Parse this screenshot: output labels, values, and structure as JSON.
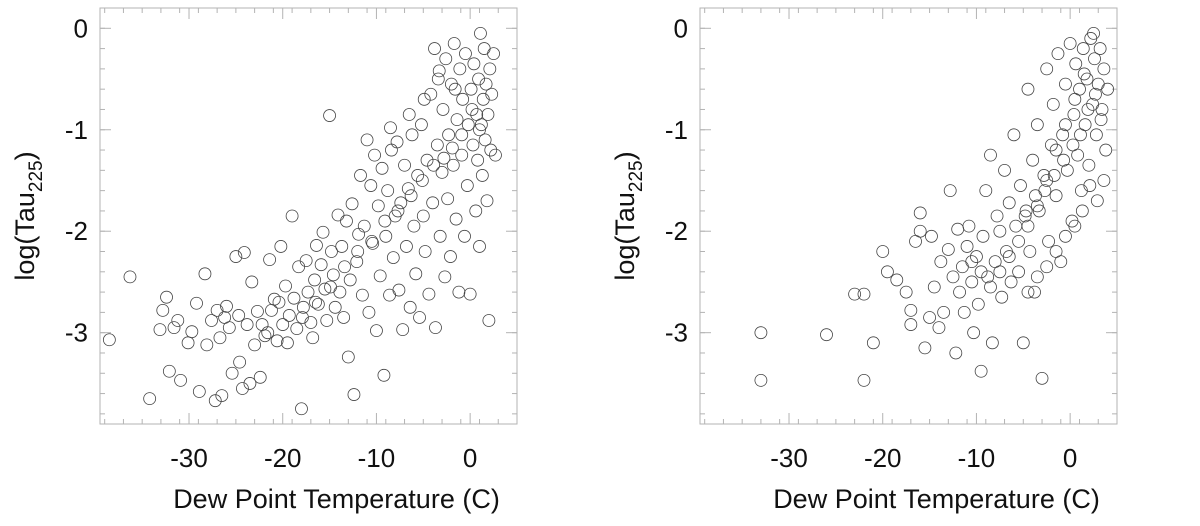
{
  "chart_data": [
    {
      "type": "scatter",
      "title": "",
      "xlabel": "Dew Point Temperature (C)",
      "ylabel_main": "log(Tau",
      "ylabel_sub": "225",
      "ylabel_close": ")",
      "xlim": [
        -39.5,
        5
      ],
      "ylim": [
        -3.9,
        0.2
      ],
      "xticks": [
        -30,
        -20,
        -10,
        0
      ],
      "xtick_labels": [
        "-30",
        "-20",
        "-10",
        "0"
      ],
      "yticks": [
        0,
        -1,
        -2,
        -3
      ],
      "ytick_labels": [
        "0",
        "-1",
        "-2",
        "-3"
      ],
      "marker": "open-circle",
      "marker_color": "#444444",
      "points": [
        [
          -38.5,
          -3.07
        ],
        [
          -36.3,
          -2.45
        ],
        [
          -34.2,
          -3.65
        ],
        [
          -33.1,
          -2.97
        ],
        [
          -32.8,
          -2.78
        ],
        [
          -32.4,
          -2.65
        ],
        [
          -32.1,
          -3.38
        ],
        [
          -31.6,
          -2.95
        ],
        [
          -31.2,
          -2.88
        ],
        [
          -30.9,
          -3.47
        ],
        [
          -30.1,
          -3.1
        ],
        [
          -29.7,
          -2.99
        ],
        [
          -29.2,
          -2.71
        ],
        [
          -28.9,
          -3.58
        ],
        [
          -28.3,
          -2.42
        ],
        [
          -28.1,
          -3.12
        ],
        [
          -27.6,
          -2.88
        ],
        [
          -27.2,
          -3.67
        ],
        [
          -27.0,
          -2.78
        ],
        [
          -26.7,
          -3.05
        ],
        [
          -26.5,
          -3.62
        ],
        [
          -26.2,
          -2.85
        ],
        [
          -26.0,
          -2.74
        ],
        [
          -25.7,
          -2.95
        ],
        [
          -25.4,
          -3.4
        ],
        [
          -25.0,
          -2.25
        ],
        [
          -24.7,
          -2.83
        ],
        [
          -24.6,
          -3.29
        ],
        [
          -24.3,
          -3.55
        ],
        [
          -24.1,
          -2.21
        ],
        [
          -23.8,
          -2.92
        ],
        [
          -23.5,
          -3.5
        ],
        [
          -23.3,
          -2.5
        ],
        [
          -23.0,
          -3.12
        ],
        [
          -22.7,
          -2.79
        ],
        [
          -22.4,
          -3.44
        ],
        [
          -22.2,
          -2.92
        ],
        [
          -21.9,
          -3.03
        ],
        [
          -21.6,
          -3.0
        ],
        [
          -21.4,
          -2.28
        ],
        [
          -21.2,
          -2.78
        ],
        [
          -20.9,
          -2.67
        ],
        [
          -20.6,
          -3.08
        ],
        [
          -20.4,
          -2.7
        ],
        [
          -20.2,
          -2.15
        ],
        [
          -20.0,
          -2.92
        ],
        [
          -19.7,
          -2.54
        ],
        [
          -19.5,
          -3.1
        ],
        [
          -19.3,
          -2.83
        ],
        [
          -19.0,
          -1.85
        ],
        [
          -18.8,
          -2.66
        ],
        [
          -18.5,
          -2.96
        ],
        [
          -18.3,
          -2.35
        ],
        [
          -18.0,
          -3.75
        ],
        [
          -17.8,
          -2.75
        ],
        [
          -17.5,
          -2.29
        ],
        [
          -17.3,
          -2.6
        ],
        [
          -17.0,
          -2.9
        ],
        [
          -16.8,
          -3.05
        ],
        [
          -16.6,
          -2.48
        ],
        [
          -16.4,
          -2.14
        ],
        [
          -16.2,
          -2.72
        ],
        [
          -15.9,
          -2.33
        ],
        [
          -15.7,
          -2.01
        ],
        [
          -15.5,
          -2.57
        ],
        [
          -15.3,
          -2.88
        ],
        [
          -15.0,
          -0.86
        ],
        [
          -14.8,
          -2.2
        ],
        [
          -14.6,
          -2.43
        ],
        [
          -14.4,
          -2.75
        ],
        [
          -14.1,
          -1.84
        ],
        [
          -13.9,
          -2.6
        ],
        [
          -13.7,
          -2.15
        ],
        [
          -13.5,
          -2.85
        ],
        [
          -13.2,
          -1.9
        ],
        [
          -13.0,
          -3.24
        ],
        [
          -12.8,
          -2.48
        ],
        [
          -12.6,
          -1.73
        ],
        [
          -12.4,
          -3.61
        ],
        [
          -12.1,
          -2.3
        ],
        [
          -11.9,
          -2.03
        ],
        [
          -11.7,
          -1.45
        ],
        [
          -11.5,
          -2.63
        ],
        [
          -11.3,
          -1.95
        ],
        [
          -11.0,
          -1.1
        ],
        [
          -10.8,
          -2.8
        ],
        [
          -10.6,
          -1.55
        ],
        [
          -10.4,
          -2.12
        ],
        [
          -10.2,
          -1.25
        ],
        [
          -10.0,
          -2.98
        ],
        [
          -9.8,
          -1.75
        ],
        [
          -9.6,
          -2.44
        ],
        [
          -9.4,
          -1.38
        ],
        [
          -9.2,
          -3.42
        ],
        [
          -9.0,
          -2.05
        ],
        [
          -8.8,
          -1.6
        ],
        [
          -8.6,
          -2.63
        ],
        [
          -8.4,
          -1.2
        ],
        [
          -8.2,
          -2.26
        ],
        [
          -8.0,
          -1.85
        ],
        [
          -7.8,
          -1.12
        ],
        [
          -7.6,
          -2.58
        ],
        [
          -7.4,
          -1.72
        ],
        [
          -7.2,
          -2.97
        ],
        [
          -7.0,
          -1.35
        ],
        [
          -6.8,
          -2.15
        ],
        [
          -6.6,
          -1.58
        ],
        [
          -6.4,
          -2.75
        ],
        [
          -6.2,
          -1.05
        ],
        [
          -6.0,
          -1.95
        ],
        [
          -5.8,
          -2.42
        ],
        [
          -5.6,
          -1.45
        ],
        [
          -5.4,
          -2.85
        ],
        [
          -5.2,
          -0.95
        ],
        [
          -5.0,
          -1.85
        ],
        [
          -4.8,
          -2.2
        ],
        [
          -4.6,
          -1.3
        ],
        [
          -4.4,
          -2.62
        ],
        [
          -4.2,
          -0.65
        ],
        [
          -4.0,
          -1.72
        ],
        [
          -3.8,
          -0.2
        ],
        [
          -3.7,
          -2.95
        ],
        [
          -3.5,
          -1.15
        ],
        [
          -3.4,
          -0.5
        ],
        [
          -3.2,
          -2.05
        ],
        [
          -3.0,
          -1.42
        ],
        [
          -2.9,
          -0.8
        ],
        [
          -2.7,
          -2.45
        ],
        [
          -2.6,
          -0.3
        ],
        [
          -2.4,
          -1.68
        ],
        [
          -2.3,
          -1.05
        ],
        [
          -2.1,
          -2.25
        ],
        [
          -2.0,
          -0.55
        ],
        [
          -1.8,
          -1.35
        ],
        [
          -1.7,
          -0.15
        ],
        [
          -1.5,
          -1.88
        ],
        [
          -1.4,
          -0.9
        ],
        [
          -1.2,
          -2.6
        ],
        [
          -1.1,
          -0.4
        ],
        [
          -0.9,
          -1.25
        ],
        [
          -0.8,
          -0.7
        ],
        [
          -0.6,
          -2.05
        ],
        [
          -0.5,
          -0.25
        ],
        [
          -0.3,
          -1.55
        ],
        [
          -0.2,
          -0.95
        ],
        [
          0.0,
          -2.62
        ],
        [
          0.1,
          -0.6
        ],
        [
          0.3,
          -1.15
        ],
        [
          0.4,
          -0.35
        ],
        [
          0.6,
          -1.8
        ],
        [
          0.7,
          -0.85
        ],
        [
          0.8,
          -1.3
        ],
        [
          0.9,
          -0.5
        ],
        [
          1.0,
          -2.15
        ],
        [
          1.1,
          -0.05
        ],
        [
          1.2,
          -0.95
        ],
        [
          1.3,
          -1.45
        ],
        [
          1.4,
          -0.7
        ],
        [
          1.5,
          -0.2
        ],
        [
          1.6,
          -1.1
        ],
        [
          1.7,
          -0.55
        ],
        [
          1.8,
          -1.7
        ],
        [
          1.9,
          -0.85
        ],
        [
          2.0,
          -2.88
        ],
        [
          2.1,
          -0.4
        ],
        [
          2.2,
          -1.2
        ],
        [
          2.3,
          -0.65
        ],
        [
          2.5,
          -0.25
        ],
        [
          2.7,
          -1.25
        ],
        [
          -8.5,
          -0.98
        ],
        [
          -6.5,
          -0.85
        ],
        [
          -4.9,
          -0.7
        ],
        [
          -3.3,
          -0.42
        ],
        [
          -1.6,
          -0.6
        ],
        [
          0.2,
          -0.8
        ],
        [
          1.0,
          -1.0
        ],
        [
          -0.9,
          -1.05
        ],
        [
          -1.9,
          -1.18
        ],
        [
          -2.8,
          -1.28
        ],
        [
          -3.9,
          -1.35
        ],
        [
          -5.1,
          -1.5
        ],
        [
          -6.3,
          -1.65
        ],
        [
          -7.7,
          -1.8
        ],
        [
          -9.1,
          -1.9
        ],
        [
          -10.5,
          -2.1
        ],
        [
          -12.0,
          -2.2
        ],
        [
          -13.4,
          -2.35
        ],
        [
          -14.9,
          -2.55
        ],
        [
          -16.5,
          -2.7
        ],
        [
          -17.9,
          -2.85
        ]
      ]
    },
    {
      "type": "scatter",
      "title": "",
      "xlabel": "Dew Point Temperature (C)",
      "ylabel_main": "log(Tau",
      "ylabel_sub": "225",
      "ylabel_close": ")",
      "xlim": [
        -39.5,
        5
      ],
      "ylim": [
        -3.9,
        0.2
      ],
      "xticks": [
        -30,
        -20,
        -10,
        0
      ],
      "xtick_labels": [
        "-30",
        "-20",
        "-10",
        "0"
      ],
      "yticks": [
        0,
        -1,
        -2,
        -3
      ],
      "ytick_labels": [
        "0",
        "-1",
        "-2",
        "-3"
      ],
      "marker": "open-circle",
      "marker_color": "#444444",
      "points": [
        [
          -33.0,
          -3.0
        ],
        [
          -33.0,
          -3.47
        ],
        [
          -26.0,
          -3.02
        ],
        [
          -23.0,
          -2.62
        ],
        [
          -22.0,
          -2.62
        ],
        [
          -22.0,
          -3.47
        ],
        [
          -21.0,
          -3.1
        ],
        [
          -20.0,
          -2.2
        ],
        [
          -19.5,
          -2.4
        ],
        [
          -18.5,
          -2.48
        ],
        [
          -17.5,
          -2.6
        ],
        [
          -17.0,
          -2.92
        ],
        [
          -17.0,
          -2.78
        ],
        [
          -16.5,
          -2.1
        ],
        [
          -16.0,
          -2.0
        ],
        [
          -16.0,
          -1.82
        ],
        [
          -15.5,
          -3.15
        ],
        [
          -15.0,
          -2.85
        ],
        [
          -14.8,
          -2.05
        ],
        [
          -14.5,
          -2.55
        ],
        [
          -14.0,
          -2.95
        ],
        [
          -13.8,
          -2.3
        ],
        [
          -13.5,
          -2.8
        ],
        [
          -13.0,
          -2.18
        ],
        [
          -12.8,
          -1.6
        ],
        [
          -12.5,
          -2.45
        ],
        [
          -12.2,
          -3.2
        ],
        [
          -12.0,
          -1.98
        ],
        [
          -11.8,
          -2.6
        ],
        [
          -11.5,
          -2.35
        ],
        [
          -11.3,
          -2.8
        ],
        [
          -11.0,
          -2.15
        ],
        [
          -10.8,
          -1.95
        ],
        [
          -10.5,
          -2.5
        ],
        [
          -10.3,
          -3.0
        ],
        [
          -10.0,
          -2.25
        ],
        [
          -9.8,
          -2.72
        ],
        [
          -9.5,
          -3.38
        ],
        [
          -9.3,
          -2.05
        ],
        [
          -9.0,
          -1.6
        ],
        [
          -8.8,
          -2.45
        ],
        [
          -8.5,
          -1.25
        ],
        [
          -8.3,
          -3.1
        ],
        [
          -8.0,
          -2.3
        ],
        [
          -7.8,
          -1.85
        ],
        [
          -7.5,
          -2.0
        ],
        [
          -7.3,
          -2.65
        ],
        [
          -7.0,
          -1.4
        ],
        [
          -6.8,
          -2.2
        ],
        [
          -6.5,
          -1.72
        ],
        [
          -6.3,
          -2.5
        ],
        [
          -6.0,
          -1.05
        ],
        [
          -5.8,
          -1.95
        ],
        [
          -5.5,
          -2.4
        ],
        [
          -5.3,
          -1.55
        ],
        [
          -5.0,
          -3.1
        ],
        [
          -4.8,
          -1.85
        ],
        [
          -4.5,
          -0.6
        ],
        [
          -4.3,
          -2.2
        ],
        [
          -4.0,
          -1.3
        ],
        [
          -3.8,
          -2.6
        ],
        [
          -3.5,
          -0.95
        ],
        [
          -3.3,
          -1.8
        ],
        [
          -3.0,
          -3.45
        ],
        [
          -2.8,
          -1.45
        ],
        [
          -2.5,
          -0.4
        ],
        [
          -2.3,
          -2.1
        ],
        [
          -2.0,
          -1.15
        ],
        [
          -1.8,
          -0.75
        ],
        [
          -1.5,
          -1.65
        ],
        [
          -1.3,
          -0.25
        ],
        [
          -1.0,
          -2.3
        ],
        [
          -0.8,
          -1.05
        ],
        [
          -0.5,
          -0.55
        ],
        [
          -0.3,
          -1.4
        ],
        [
          0.0,
          -0.15
        ],
        [
          0.2,
          -1.9
        ],
        [
          0.4,
          -0.85
        ],
        [
          0.6,
          -0.35
        ],
        [
          0.8,
          -1.25
        ],
        [
          1.0,
          -0.6
        ],
        [
          1.2,
          -1.6
        ],
        [
          1.4,
          -0.2
        ],
        [
          1.6,
          -0.95
        ],
        [
          1.8,
          -0.5
        ],
        [
          2.0,
          -1.35
        ],
        [
          2.2,
          -0.1
        ],
        [
          2.4,
          -0.75
        ],
        [
          2.6,
          -0.3
        ],
        [
          2.8,
          -1.05
        ],
        [
          3.0,
          -0.55
        ],
        [
          3.2,
          -0.2
        ],
        [
          3.4,
          -0.8
        ],
        [
          3.6,
          -0.4
        ],
        [
          3.8,
          -1.2
        ],
        [
          4.0,
          -0.6
        ],
        [
          2.5,
          -0.05
        ],
        [
          1.5,
          -0.45
        ],
        [
          0.5,
          -0.7
        ],
        [
          -0.5,
          -0.95
        ],
        [
          -1.5,
          -1.2
        ],
        [
          -2.5,
          -1.5
        ],
        [
          -3.5,
          -1.75
        ],
        [
          -4.5,
          -1.95
        ],
        [
          -5.5,
          -2.1
        ],
        [
          -6.5,
          -2.25
        ],
        [
          -7.5,
          -2.4
        ],
        [
          -8.5,
          -2.55
        ],
        [
          -9.5,
          -2.4
        ],
        [
          -10.5,
          -2.3
        ],
        [
          3.3,
          -0.9
        ],
        [
          2.7,
          -0.65
        ],
        [
          1.9,
          -0.8
        ],
        [
          1.1,
          -1.05
        ],
        [
          0.3,
          -1.15
        ],
        [
          -0.7,
          -1.3
        ],
        [
          -1.7,
          -1.45
        ],
        [
          -2.7,
          -1.6
        ],
        [
          -3.7,
          -1.65
        ],
        [
          -4.7,
          -1.8
        ],
        [
          3.6,
          -1.5
        ],
        [
          2.9,
          -1.7
        ],
        [
          2.1,
          -1.55
        ],
        [
          1.3,
          -1.8
        ],
        [
          0.5,
          -1.95
        ],
        [
          -0.5,
          -2.05
        ],
        [
          -1.5,
          -2.2
        ],
        [
          -2.5,
          -2.35
        ],
        [
          -3.5,
          -2.45
        ],
        [
          -4.5,
          -2.6
        ]
      ]
    }
  ]
}
